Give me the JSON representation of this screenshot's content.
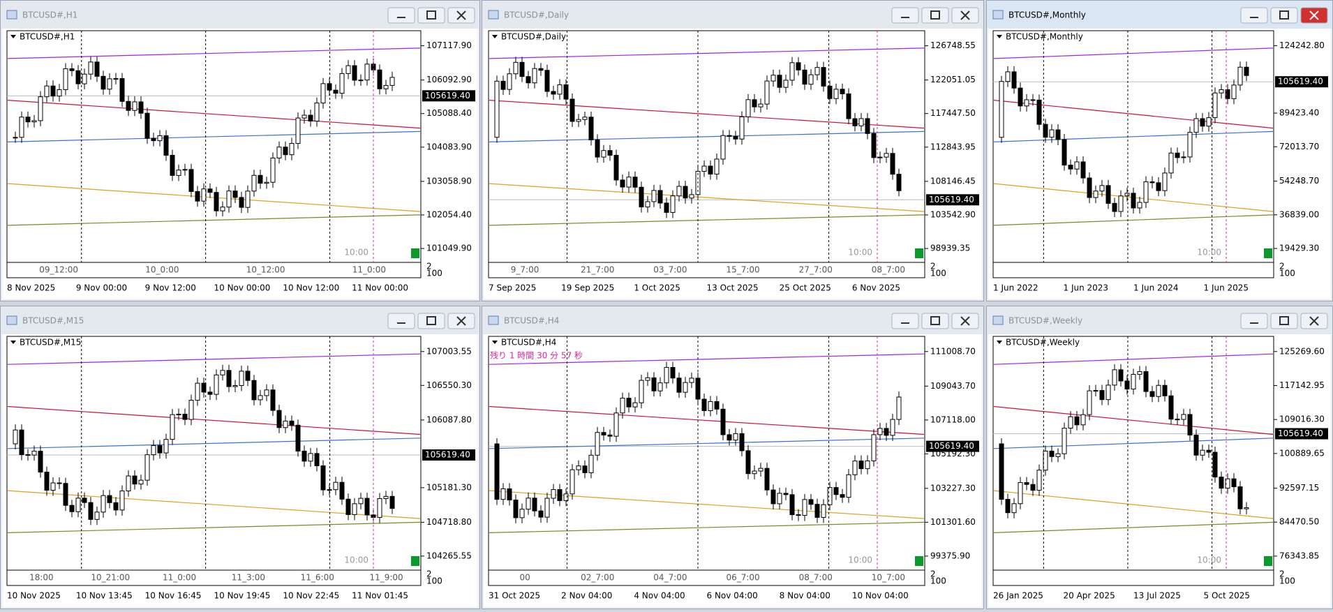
{
  "windows": [
    {
      "title": "BTCUSD#,H1",
      "symbol_label": "BTCUSD#,H1",
      "price_ticks": [
        "107117.90",
        "106092.90",
        "105088.40",
        "104083.90",
        "103058.90",
        "102054.40",
        "101049.90"
      ],
      "current_price": "105619.40",
      "time_marks": [
        "09_12:00",
        "10_0:00",
        "10_12:00",
        "11_0:00"
      ],
      "dates": [
        "8 Nov 2025",
        "9 Nov 00:00",
        "9 Nov 12:00",
        "10 Nov 00:00",
        "10 Nov 12:00",
        "11 Nov 00:00"
      ],
      "countdown": "10:00",
      "corner_labels": [
        "2",
        "100"
      ]
    },
    {
      "title": "BTCUSD#,Daily",
      "symbol_label": "BTCUSD#,Daily",
      "price_ticks": [
        "126748.55",
        "122051.05",
        "117447.50",
        "112843.95",
        "108146.45",
        "103542.90",
        "98939.35"
      ],
      "current_price": "105619.40",
      "time_marks": [
        "9_7:00",
        "21_7:00",
        "03_7:00",
        "15_7:00",
        "27_7:00",
        "08_7:00"
      ],
      "dates": [
        "7 Sep 2025",
        "19 Sep 2025",
        "1 Oct 2025",
        "13 Oct 2025",
        "25 Oct 2025",
        "6 Nov 2025"
      ],
      "countdown": "10:00",
      "corner_labels": [
        "2",
        "100"
      ]
    },
    {
      "title": "BTCUSD#,Monthly",
      "symbol_label": "BTCUSD#,Monthly",
      "price_ticks": [
        "124242.80",
        "89423.40",
        "72013.70",
        "54248.70",
        "36839.00",
        "19429.30"
      ],
      "current_price": "105619.40",
      "time_marks": [],
      "dates": [
        "1 Jun 2022",
        "1 Jun 2023",
        "1 Jun 2024",
        "1 Jun 2025"
      ],
      "countdown": "10:00",
      "corner_labels": [
        "2",
        "100"
      ]
    },
    {
      "title": "BTCUSD#,M15",
      "symbol_label": "BTCUSD#,M15",
      "price_ticks": [
        "107003.55",
        "106550.30",
        "106087.80",
        "105181.30",
        "104718.80",
        "104265.55"
      ],
      "current_price": "105619.40",
      "time_marks": [
        "18:00",
        "10_21:00",
        "11_0:00",
        "11_3:00",
        "11_6:00",
        "11_9:00"
      ],
      "dates": [
        "10 Nov 2025",
        "10 Nov 13:45",
        "10 Nov 16:45",
        "10 Nov 19:45",
        "10 Nov 22:45",
        "11 Nov 01:45"
      ],
      "countdown": "10:00",
      "corner_labels": [
        "2",
        "100"
      ]
    },
    {
      "title": "BTCUSD#,H4",
      "symbol_label": "BTCUSD#,H4",
      "price_ticks": [
        "111008.70",
        "109043.70",
        "107118.00",
        "105192.30",
        "103227.30",
        "101301.60",
        "99375.90"
      ],
      "current_price": "105619.40",
      "time_marks": [
        "00",
        "02_7:00",
        "04_7:00",
        "06_7:00",
        "08_7:00",
        "10_7:00"
      ],
      "dates": [
        "31 Oct 2025",
        "2 Nov 04:00",
        "4 Nov 04:00",
        "6 Nov 04:00",
        "8 Nov 04:00",
        "10 Nov 04:00"
      ],
      "countdown": "10:00",
      "corner_labels": [
        "2",
        "100"
      ],
      "note": "残り 1 時間 30 分 57 秒"
    },
    {
      "title": "BTCUSD#,Weekly",
      "symbol_label": "BTCUSD#,Weekly",
      "price_ticks": [
        "125269.60",
        "117142.95",
        "109016.30",
        "100889.65",
        "92597.15",
        "84470.50",
        "76343.85"
      ],
      "current_price": "105619.40",
      "time_marks": [],
      "dates": [
        "26 Jan 2025",
        "20 Apr 2025",
        "13 Jul 2025",
        "5 Oct 2025"
      ],
      "countdown": "10:00",
      "corner_labels": [
        "2",
        "100"
      ]
    }
  ]
}
